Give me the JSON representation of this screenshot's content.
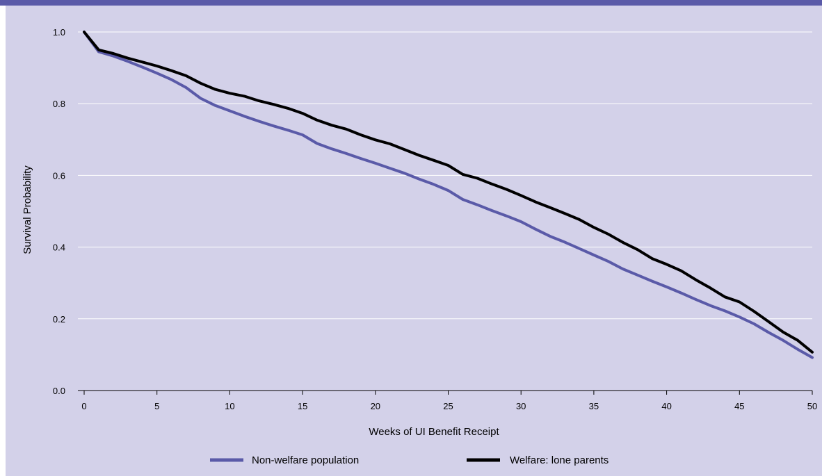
{
  "chart_data": {
    "type": "line",
    "title": "",
    "xlabel": "Weeks of UI Benefit Receipt",
    "ylabel": "Survival Probability",
    "xlim": [
      0,
      50
    ],
    "ylim": [
      0,
      1.0
    ],
    "x_ticks": [
      0,
      5,
      10,
      15,
      20,
      25,
      30,
      35,
      40,
      45,
      50
    ],
    "y_ticks": [
      0.0,
      0.2,
      0.4,
      0.6,
      0.8,
      1.0
    ],
    "y_tick_labels": [
      "0.0",
      "0.2",
      "0.4",
      "0.6",
      "0.8",
      "1.0"
    ],
    "grid": "horizontal",
    "legend_position": "bottom",
    "series": [
      {
        "name": "Non-welfare population",
        "color": "#5a5aa8",
        "x": [
          0,
          1,
          2,
          3,
          4,
          5,
          6,
          7,
          8,
          9,
          10,
          11,
          12,
          13,
          14,
          15,
          16,
          17,
          18,
          19,
          20,
          21,
          22,
          23,
          24,
          25,
          26,
          27,
          28,
          29,
          30,
          31,
          32,
          33,
          34,
          35,
          36,
          37,
          38,
          39,
          40,
          41,
          42,
          43,
          44,
          45,
          46,
          47,
          48,
          49,
          50
        ],
        "y": [
          1.0,
          0.945,
          0.933,
          0.918,
          0.902,
          0.885,
          0.867,
          0.845,
          0.815,
          0.795,
          0.78,
          0.765,
          0.751,
          0.738,
          0.726,
          0.713,
          0.689,
          0.674,
          0.661,
          0.647,
          0.634,
          0.62,
          0.606,
          0.59,
          0.575,
          0.558,
          0.533,
          0.518,
          0.502,
          0.487,
          0.471,
          0.45,
          0.43,
          0.414,
          0.396,
          0.378,
          0.36,
          0.339,
          0.322,
          0.305,
          0.289,
          0.272,
          0.254,
          0.237,
          0.222,
          0.205,
          0.186,
          0.162,
          0.14,
          0.115,
          0.092
        ]
      },
      {
        "name": "Welfare: lone parents",
        "color": "#000000",
        "x": [
          0,
          1,
          2,
          3,
          4,
          5,
          6,
          7,
          8,
          9,
          10,
          11,
          12,
          13,
          14,
          15,
          16,
          17,
          18,
          19,
          20,
          21,
          22,
          23,
          24,
          25,
          26,
          27,
          28,
          29,
          30,
          31,
          32,
          33,
          34,
          35,
          36,
          37,
          38,
          39,
          40,
          41,
          42,
          43,
          44,
          45,
          46,
          47,
          48,
          49,
          50
        ],
        "y": [
          1.0,
          0.95,
          0.94,
          0.927,
          0.916,
          0.905,
          0.892,
          0.878,
          0.857,
          0.84,
          0.829,
          0.821,
          0.808,
          0.798,
          0.787,
          0.773,
          0.754,
          0.74,
          0.729,
          0.713,
          0.699,
          0.688,
          0.672,
          0.656,
          0.642,
          0.628,
          0.603,
          0.592,
          0.576,
          0.561,
          0.544,
          0.526,
          0.51,
          0.494,
          0.477,
          0.455,
          0.436,
          0.413,
          0.393,
          0.368,
          0.352,
          0.334,
          0.309,
          0.286,
          0.261,
          0.247,
          0.221,
          0.192,
          0.163,
          0.14,
          0.107
        ]
      }
    ]
  }
}
